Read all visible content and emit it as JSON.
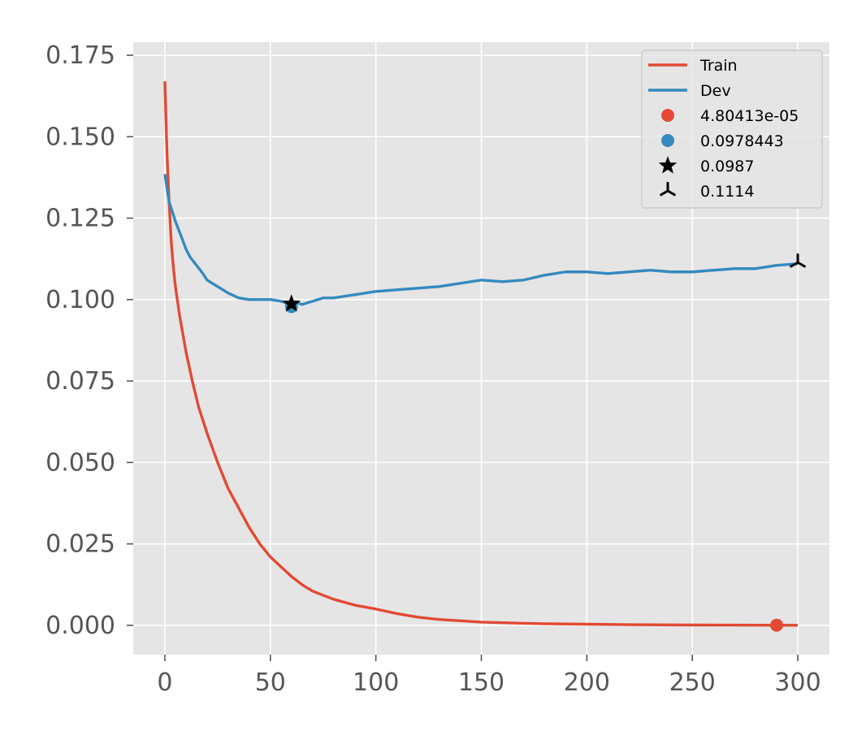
{
  "chart_data": {
    "type": "line",
    "title": "",
    "xlabel": "",
    "ylabel": "",
    "xlim": [
      -15,
      315
    ],
    "ylim": [
      -0.009,
      0.179
    ],
    "grid": true,
    "legend_position": "top-right",
    "x_ticks": [
      0,
      50,
      100,
      150,
      200,
      250,
      300
    ],
    "y_ticks": [
      0.0,
      0.025,
      0.05,
      0.075,
      0.1,
      0.125,
      0.15,
      0.175
    ],
    "x_tick_labels": [
      "0",
      "50",
      "100",
      "150",
      "200",
      "250",
      "300"
    ],
    "y_tick_labels": [
      "0.000",
      "0.025",
      "0.050",
      "0.075",
      "0.100",
      "0.125",
      "0.150",
      "0.175"
    ],
    "series": [
      {
        "name": "Train",
        "kind": "line",
        "color": "#e24a33",
        "x": [
          0,
          1,
          2,
          3,
          4,
          5,
          7,
          10,
          13,
          16,
          20,
          25,
          30,
          35,
          40,
          45,
          50,
          55,
          60,
          65,
          70,
          80,
          90,
          100,
          110,
          120,
          130,
          140,
          150,
          165,
          180,
          200,
          220,
          250,
          280,
          290,
          300
        ],
        "y": [
          0.167,
          0.145,
          0.13,
          0.118,
          0.11,
          0.104,
          0.095,
          0.084,
          0.075,
          0.067,
          0.059,
          0.05,
          0.042,
          0.036,
          0.03,
          0.025,
          0.021,
          0.018,
          0.015,
          0.0125,
          0.0105,
          0.008,
          0.0062,
          0.005,
          0.0036,
          0.0025,
          0.0018,
          0.0014,
          0.001,
          0.0007,
          0.0005,
          0.00035,
          0.0002,
          0.0001,
          5e-05,
          4e-05,
          3e-05
        ]
      },
      {
        "name": "Dev",
        "kind": "line",
        "color": "#348abd",
        "x": [
          0,
          2,
          5,
          8,
          10,
          12,
          15,
          18,
          20,
          25,
          30,
          35,
          40,
          45,
          50,
          55,
          60,
          63,
          65,
          70,
          75,
          80,
          85,
          90,
          95,
          100,
          110,
          120,
          130,
          140,
          150,
          160,
          170,
          180,
          190,
          200,
          210,
          220,
          230,
          240,
          250,
          260,
          270,
          280,
          290,
          300
        ],
        "y": [
          0.1385,
          0.13,
          0.124,
          0.119,
          0.1155,
          0.113,
          0.1105,
          0.108,
          0.106,
          0.104,
          0.102,
          0.1005,
          0.1,
          0.1,
          0.1,
          0.0995,
          0.0985,
          0.099,
          0.0985,
          0.0995,
          0.1005,
          0.1005,
          0.101,
          0.1015,
          0.102,
          0.1025,
          0.103,
          0.1035,
          0.104,
          0.105,
          0.106,
          0.1055,
          0.106,
          0.1075,
          0.1085,
          0.1085,
          0.108,
          0.1085,
          0.109,
          0.1085,
          0.1085,
          0.109,
          0.1095,
          0.1095,
          0.1105,
          0.111
        ]
      },
      {
        "name": "4.80413e-05",
        "kind": "point",
        "marker": "circle",
        "color": "#e24a33",
        "x": [
          290
        ],
        "y": [
          4.80413e-05
        ]
      },
      {
        "name": "0.0978443",
        "kind": "point",
        "marker": "circle",
        "color": "#348abd",
        "x": [
          60
        ],
        "y": [
          0.0978443
        ]
      },
      {
        "name": "0.0987",
        "kind": "point",
        "marker": "star",
        "color": "#000000",
        "x": [
          60
        ],
        "y": [
          0.0987
        ]
      },
      {
        "name": "0.1114",
        "kind": "point",
        "marker": "tri",
        "color": "#000000",
        "x": [
          300
        ],
        "y": [
          0.1114
        ]
      }
    ]
  }
}
